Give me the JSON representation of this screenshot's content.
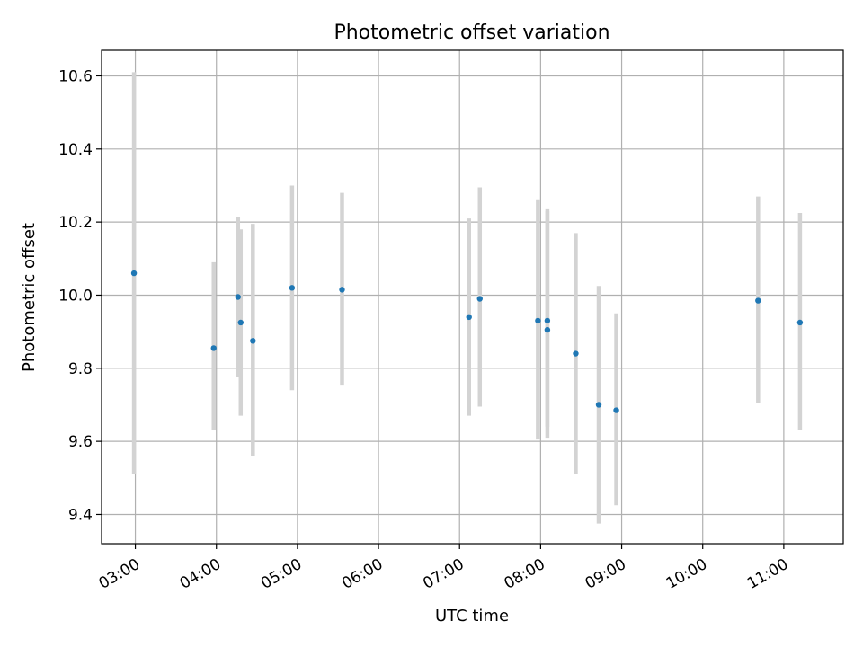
{
  "chart_data": {
    "type": "scatter",
    "title": "Photometric offset variation",
    "xlabel": "UTC time",
    "ylabel": "Photometric offset",
    "x_tick_labels": [
      "03:00",
      "04:00",
      "05:00",
      "06:00",
      "07:00",
      "08:00",
      "09:00",
      "10:00",
      "11:00"
    ],
    "y_tick_labels": [
      "9.4",
      "9.6",
      "9.8",
      "10.0",
      "10.2",
      "10.4",
      "10.6"
    ],
    "xlim": [
      "02:35",
      "11:44"
    ],
    "ylim": [
      9.32,
      10.67
    ],
    "grid": true,
    "series": [
      {
        "color": "#1f77b4",
        "errorbar_color": "#d3d3d3",
        "points": [
          {
            "time": "02:59",
            "y": 10.06,
            "yerr_low": 9.51,
            "yerr_high": 10.61
          },
          {
            "time": "03:58",
            "y": 9.855,
            "yerr_low": 9.63,
            "yerr_high": 10.09
          },
          {
            "time": "04:16",
            "y": 9.995,
            "yerr_low": 9.775,
            "yerr_high": 10.215
          },
          {
            "time": "04:18",
            "y": 9.925,
            "yerr_low": 9.67,
            "yerr_high": 10.18
          },
          {
            "time": "04:27",
            "y": 9.875,
            "yerr_low": 9.56,
            "yerr_high": 10.195
          },
          {
            "time": "04:56",
            "y": 10.02,
            "yerr_low": 9.74,
            "yerr_high": 10.3
          },
          {
            "time": "05:33",
            "y": 10.015,
            "yerr_low": 9.755,
            "yerr_high": 10.28
          },
          {
            "time": "07:07",
            "y": 9.94,
            "yerr_low": 9.67,
            "yerr_high": 10.21
          },
          {
            "time": "07:15",
            "y": 9.99,
            "yerr_low": 9.695,
            "yerr_high": 10.295
          },
          {
            "time": "07:58",
            "y": 9.93,
            "yerr_low": 9.605,
            "yerr_high": 10.26
          },
          {
            "time": "08:05",
            "y": 9.93,
            "yerr_low": 9.61,
            "yerr_high": 10.235
          },
          {
            "time": "08:05",
            "y": 9.905,
            "yerr_low": 9.64,
            "yerr_high": 10.23
          },
          {
            "time": "08:26",
            "y": 9.84,
            "yerr_low": 9.51,
            "yerr_high": 10.17
          },
          {
            "time": "08:43",
            "y": 9.7,
            "yerr_low": 9.375,
            "yerr_high": 10.025
          },
          {
            "time": "08:56",
            "y": 9.685,
            "yerr_low": 9.425,
            "yerr_high": 9.95
          },
          {
            "time": "10:41",
            "y": 9.985,
            "yerr_low": 9.705,
            "yerr_high": 10.27
          },
          {
            "time": "11:12",
            "y": 9.925,
            "yerr_low": 9.63,
            "yerr_high": 10.225
          }
        ]
      }
    ]
  }
}
